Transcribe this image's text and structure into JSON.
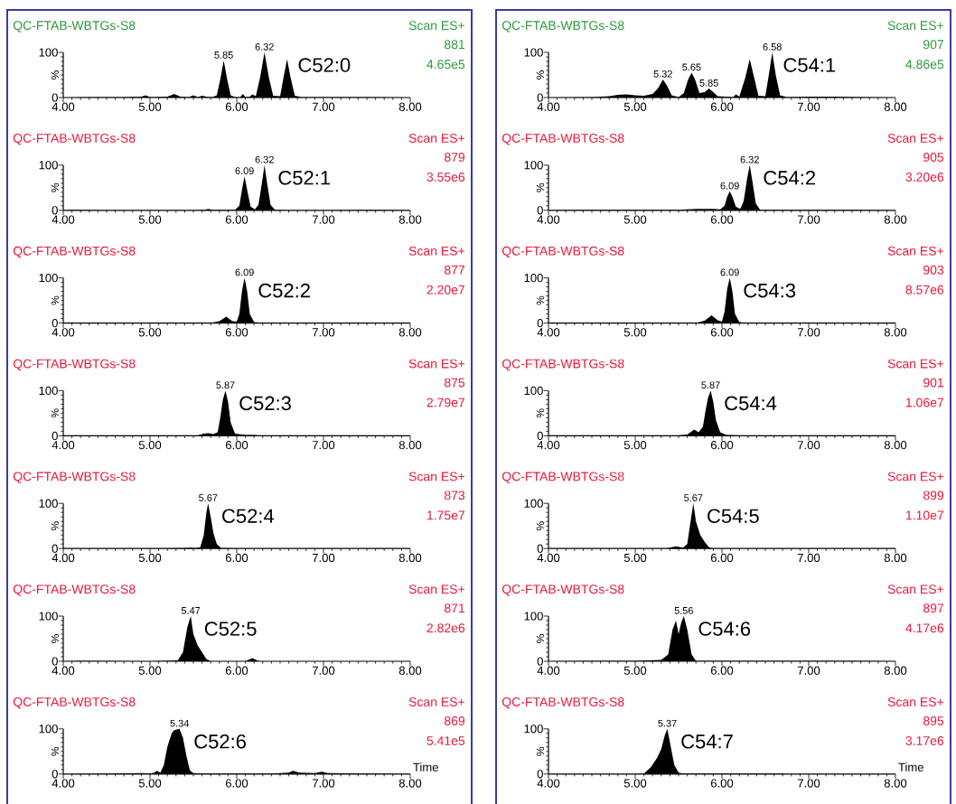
{
  "chart_data": [
    {
      "type": "area",
      "title": "QC-FTAB-WBTGs-S8",
      "subtitle": "Scan ES+",
      "ylabel": "%",
      "color": "#000000",
      "xlim": [
        4,
        8
      ],
      "ylim": [
        0,
        100
      ],
      "xticks": [
        {
          "value": 4,
          "label": "4.00"
        },
        {
          "value": 5,
          "label": "5.00"
        },
        {
          "value": 6,
          "label": "6.00"
        },
        {
          "value": 7,
          "label": "7.00"
        },
        {
          "value": 8,
          "label": "8.00"
        }
      ],
      "yticks": [
        0,
        100
      ],
      "x": [
        4.0,
        4.3,
        4.5,
        4.7,
        4.9,
        4.95,
        5.0,
        5.2,
        5.28,
        5.35,
        5.45,
        5.5,
        5.55,
        5.6,
        5.65,
        5.72,
        5.77,
        5.81,
        5.85,
        5.89,
        5.93,
        5.98,
        6.04,
        6.07,
        6.1,
        6.15,
        6.18,
        6.22,
        6.27,
        6.32,
        6.37,
        6.42,
        6.5,
        6.54,
        6.58,
        6.62,
        6.67,
        6.75,
        7.0,
        7.5,
        8.0
      ],
      "values": [
        0,
        1,
        1,
        1,
        2,
        5,
        1,
        2,
        8,
        2,
        1,
        5,
        1,
        4,
        2,
        1,
        5,
        40,
        82,
        40,
        5,
        1,
        1,
        8,
        1,
        2,
        7,
        3,
        45,
        100,
        45,
        4,
        3,
        45,
        85,
        45,
        4,
        1,
        1,
        1,
        0
      ],
      "annotations": [
        "881",
        "4.65e5",
        "C52:0",
        {
          "text": "5.85",
          "x": 5.85,
          "y": 82
        },
        {
          "text": "6.32",
          "x": 6.32,
          "y": 100
        }
      ]
    },
    {
      "type": "area",
      "title": "QC-FTAB-WBTGs-S8",
      "subtitle": "Scan ES+",
      "ylabel": "%",
      "color": "#000000",
      "xlim": [
        4,
        8
      ],
      "ylim": [
        0,
        100
      ],
      "xticks": [
        {
          "value": 4,
          "label": "4.00"
        },
        {
          "value": 5,
          "label": "5.00"
        },
        {
          "value": 6,
          "label": "6.00"
        },
        {
          "value": 7,
          "label": "7.00"
        },
        {
          "value": 8,
          "label": "8.00"
        }
      ],
      "yticks": [
        0,
        100
      ],
      "x": [
        4.0,
        4.5,
        4.7,
        4.8,
        4.9,
        5.0,
        5.1,
        5.2,
        5.26,
        5.32,
        5.37,
        5.42,
        5.5,
        5.56,
        5.61,
        5.65,
        5.69,
        5.74,
        5.8,
        5.85,
        5.9,
        5.95,
        6.05,
        6.13,
        6.16,
        6.2,
        6.27,
        6.32,
        6.37,
        6.42,
        6.5,
        6.54,
        6.58,
        6.62,
        6.67,
        6.75,
        7.0,
        7.3,
        7.6,
        8.0
      ],
      "values": [
        0,
        1,
        3,
        6,
        7,
        5,
        4,
        8,
        20,
        40,
        25,
        5,
        1,
        10,
        40,
        55,
        40,
        10,
        12,
        20,
        12,
        3,
        2,
        1,
        7,
        2,
        45,
        85,
        45,
        4,
        3,
        50,
        100,
        50,
        5,
        1,
        2,
        2,
        1,
        0
      ],
      "annotations": [
        "907",
        "4.86e5",
        "C54:1",
        {
          "text": "5.32",
          "x": 5.32,
          "y": 40
        },
        {
          "text": "5.65",
          "x": 5.65,
          "y": 55
        },
        {
          "text": "5.85",
          "x": 5.85,
          "y": 20
        },
        {
          "text": "6.58",
          "x": 6.58,
          "y": 100
        }
      ]
    },
    {
      "type": "area",
      "title": "QC-FTAB-WBTGs-S8",
      "subtitle": "Scan ES+",
      "ylabel": "%",
      "color": "#000000",
      "xlim": [
        4,
        8
      ],
      "ylim": [
        0,
        100
      ],
      "xticks": [
        {
          "value": 4,
          "label": "4.00"
        },
        {
          "value": 5,
          "label": "5.00"
        },
        {
          "value": 6,
          "label": "6.00"
        },
        {
          "value": 7,
          "label": "7.00"
        },
        {
          "value": 8,
          "label": "8.00"
        }
      ],
      "yticks": [
        0,
        100
      ],
      "x": [
        4.0,
        4.1,
        4.5,
        5.0,
        5.5,
        5.63,
        5.67,
        5.72,
        5.9,
        5.98,
        6.03,
        6.06,
        6.09,
        6.12,
        6.16,
        6.21,
        6.25,
        6.29,
        6.32,
        6.35,
        6.39,
        6.44,
        6.6,
        7.0,
        7.6,
        8.0
      ],
      "values": [
        0,
        1,
        0,
        0,
        0,
        1,
        3,
        1,
        1,
        1,
        10,
        45,
        75,
        45,
        8,
        2,
        12,
        60,
        100,
        60,
        12,
        1,
        0,
        0,
        1,
        0
      ],
      "annotations": [
        "879",
        "3.55e6",
        "C52:1",
        {
          "text": "6.09",
          "x": 6.09,
          "y": 75
        },
        {
          "text": "6.32",
          "x": 6.32,
          "y": 100
        }
      ]
    },
    {
      "type": "area",
      "title": "QC-FTAB-WBTGs-S8",
      "subtitle": "Scan ES+",
      "ylabel": "%",
      "color": "#000000",
      "xlim": [
        4,
        8
      ],
      "ylim": [
        0,
        100
      ],
      "xticks": [
        {
          "value": 4,
          "label": "4.00"
        },
        {
          "value": 5,
          "label": "5.00"
        },
        {
          "value": 6,
          "label": "6.00"
        },
        {
          "value": 7,
          "label": "7.00"
        },
        {
          "value": 8,
          "label": "8.00"
        }
      ],
      "yticks": [
        0,
        100
      ],
      "x": [
        4.0,
        4.5,
        5.0,
        5.5,
        5.6,
        5.7,
        5.9,
        5.98,
        6.03,
        6.06,
        6.09,
        6.12,
        6.16,
        6.21,
        6.25,
        6.29,
        6.32,
        6.35,
        6.39,
        6.44,
        6.6,
        7.0,
        7.5,
        8.0
      ],
      "values": [
        0,
        1,
        1,
        1,
        2,
        3,
        3,
        2,
        10,
        30,
        42,
        30,
        8,
        3,
        20,
        70,
        100,
        65,
        15,
        1,
        1,
        1,
        1,
        0
      ],
      "annotations": [
        "905",
        "3.20e6",
        "C54:2",
        {
          "text": "6.09",
          "x": 6.09,
          "y": 42
        },
        {
          "text": "6.32",
          "x": 6.32,
          "y": 100
        }
      ]
    },
    {
      "type": "area",
      "title": "QC-FTAB-WBTGs-S8",
      "subtitle": "Scan ES+",
      "ylabel": "%",
      "color": "#000000",
      "xlim": [
        4,
        8
      ],
      "ylim": [
        0,
        100
      ],
      "xticks": [
        {
          "value": 4,
          "label": "4.00"
        },
        {
          "value": 5,
          "label": "5.00"
        },
        {
          "value": 6,
          "label": "6.00"
        },
        {
          "value": 7,
          "label": "7.00"
        },
        {
          "value": 8,
          "label": "8.00"
        }
      ],
      "yticks": [
        0,
        100
      ],
      "x": [
        4.0,
        5.0,
        5.7,
        5.8,
        5.88,
        5.95,
        6.0,
        6.03,
        6.06,
        6.09,
        6.12,
        6.15,
        6.2,
        6.3,
        7.0,
        8.0
      ],
      "values": [
        0,
        0,
        0,
        4,
        14,
        4,
        3,
        20,
        70,
        100,
        70,
        20,
        2,
        0,
        0,
        0
      ],
      "annotations": [
        "877",
        "2.20e7",
        "C52:2",
        {
          "text": "6.09",
          "x": 6.09,
          "y": 100
        }
      ]
    },
    {
      "type": "area",
      "title": "QC-FTAB-WBTGs-S8",
      "subtitle": "Scan ES+",
      "ylabel": "%",
      "color": "#000000",
      "xlim": [
        4,
        8
      ],
      "ylim": [
        0,
        100
      ],
      "xticks": [
        {
          "value": 4,
          "label": "4.00"
        },
        {
          "value": 5,
          "label": "5.00"
        },
        {
          "value": 6,
          "label": "6.00"
        },
        {
          "value": 7,
          "label": "7.00"
        },
        {
          "value": 8,
          "label": "8.00"
        }
      ],
      "yticks": [
        0,
        100
      ],
      "x": [
        4.0,
        5.0,
        5.7,
        5.8,
        5.88,
        5.95,
        6.0,
        6.03,
        6.06,
        6.09,
        6.12,
        6.15,
        6.2,
        6.3,
        7.0,
        8.0
      ],
      "values": [
        0,
        0,
        0,
        5,
        17,
        6,
        3,
        25,
        75,
        100,
        70,
        20,
        2,
        0,
        0,
        0
      ],
      "annotations": [
        "903",
        "8.57e6",
        "C54:3",
        {
          "text": "6.09",
          "x": 6.09,
          "y": 100
        }
      ]
    },
    {
      "type": "area",
      "title": "QC-FTAB-WBTGs-S8",
      "subtitle": "Scan ES+",
      "ylabel": "%",
      "color": "#000000",
      "xlim": [
        4,
        8
      ],
      "ylim": [
        0,
        100
      ],
      "xticks": [
        {
          "value": 4,
          "label": "4.00"
        },
        {
          "value": 5,
          "label": "5.00"
        },
        {
          "value": 6,
          "label": "6.00"
        },
        {
          "value": 7,
          "label": "7.00"
        },
        {
          "value": 8,
          "label": "8.00"
        }
      ],
      "yticks": [
        0,
        100
      ],
      "x": [
        4.0,
        5.0,
        5.55,
        5.62,
        5.67,
        5.73,
        5.78,
        5.81,
        5.84,
        5.87,
        5.9,
        5.93,
        5.98,
        6.1,
        6.2,
        6.3,
        7.0,
        8.0
      ],
      "values": [
        0,
        0,
        1,
        5,
        6,
        4,
        8,
        40,
        80,
        100,
        75,
        30,
        5,
        2,
        2,
        0,
        0,
        0
      ],
      "annotations": [
        "875",
        "2.79e7",
        "C52:3",
        {
          "text": "5.87",
          "x": 5.87,
          "y": 100
        }
      ]
    },
    {
      "type": "area",
      "title": "QC-FTAB-WBTGs-S8",
      "subtitle": "Scan ES+",
      "ylabel": "%",
      "color": "#000000",
      "xlim": [
        4,
        8
      ],
      "ylim": [
        0,
        100
      ],
      "xticks": [
        {
          "value": 4,
          "label": "4.00"
        },
        {
          "value": 5,
          "label": "5.00"
        },
        {
          "value": 6,
          "label": "6.00"
        },
        {
          "value": 7,
          "label": "7.00"
        },
        {
          "value": 8,
          "label": "8.00"
        }
      ],
      "yticks": [
        0,
        100
      ],
      "x": [
        4.0,
        5.0,
        5.05,
        5.1,
        5.3,
        5.5,
        5.6,
        5.68,
        5.73,
        5.78,
        5.81,
        5.84,
        5.87,
        5.9,
        5.93,
        5.98,
        6.05,
        6.2,
        6.4,
        6.5,
        7.0,
        8.0
      ],
      "values": [
        0,
        0,
        1,
        0,
        1,
        1,
        3,
        14,
        8,
        20,
        55,
        85,
        100,
        75,
        35,
        8,
        2,
        1,
        1,
        0,
        0,
        0
      ],
      "annotations": [
        "901",
        "1.06e7",
        "C54:4",
        {
          "text": "5.87",
          "x": 5.87,
          "y": 100
        }
      ]
    },
    {
      "type": "area",
      "title": "QC-FTAB-WBTGs-S8",
      "subtitle": "Scan ES+",
      "ylabel": "%",
      "color": "#000000",
      "xlim": [
        4,
        8
      ],
      "ylim": [
        0,
        100
      ],
      "xticks": [
        {
          "value": 4,
          "label": "4.00"
        },
        {
          "value": 5,
          "label": "5.00"
        },
        {
          "value": 6,
          "label": "6.00"
        },
        {
          "value": 7,
          "label": "7.00"
        },
        {
          "value": 8,
          "label": "8.00"
        }
      ],
      "yticks": [
        0,
        100
      ],
      "x": [
        4.0,
        5.0,
        5.4,
        5.47,
        5.52,
        5.58,
        5.62,
        5.65,
        5.67,
        5.7,
        5.73,
        5.77,
        5.82,
        6.0,
        7.0,
        8.0
      ],
      "values": [
        0,
        0,
        1,
        2,
        1,
        3,
        30,
        80,
        100,
        70,
        35,
        10,
        1,
        0,
        0,
        0
      ],
      "annotations": [
        "873",
        "1.75e7",
        "C52:4",
        {
          "text": "5.67",
          "x": 5.67,
          "y": 100
        }
      ]
    },
    {
      "type": "area",
      "title": "QC-FTAB-WBTGs-S8",
      "subtitle": "Scan ES+",
      "ylabel": "%",
      "color": "#000000",
      "xlim": [
        4,
        8
      ],
      "ylim": [
        0,
        100
      ],
      "xticks": [
        {
          "value": 4,
          "label": "4.00"
        },
        {
          "value": 5,
          "label": "5.00"
        },
        {
          "value": 6,
          "label": "6.00"
        },
        {
          "value": 7,
          "label": "7.00"
        },
        {
          "value": 8,
          "label": "8.00"
        }
      ],
      "yticks": [
        0,
        100
      ],
      "x": [
        4.0,
        5.0,
        5.35,
        5.47,
        5.55,
        5.6,
        5.63,
        5.67,
        5.7,
        5.75,
        5.8,
        5.85,
        5.9,
        6.0,
        7.0,
        8.0
      ],
      "values": [
        0,
        0,
        0,
        5,
        2,
        10,
        50,
        100,
        60,
        30,
        15,
        3,
        0,
        0,
        0,
        0
      ],
      "annotations": [
        "899",
        "1.10e7",
        "C54:5",
        {
          "text": "5.67",
          "x": 5.67,
          "y": 100
        }
      ]
    },
    {
      "type": "area",
      "title": "QC-FTAB-WBTGs-S8",
      "subtitle": "Scan ES+",
      "ylabel": "%",
      "color": "#000000",
      "xlim": [
        4,
        8
      ],
      "ylim": [
        0,
        100
      ],
      "xticks": [
        {
          "value": 4,
          "label": "4.00"
        },
        {
          "value": 5,
          "label": "5.00"
        },
        {
          "value": 6,
          "label": "6.00"
        },
        {
          "value": 7,
          "label": "7.00"
        },
        {
          "value": 8,
          "label": "8.00"
        }
      ],
      "yticks": [
        0,
        100
      ],
      "x": [
        4.0,
        4.2,
        5.0,
        5.32,
        5.38,
        5.43,
        5.47,
        5.5,
        5.55,
        5.6,
        5.65,
        5.7,
        6.1,
        6.18,
        6.26,
        6.5,
        7.0,
        8.0
      ],
      "values": [
        0,
        1,
        0,
        2,
        20,
        75,
        100,
        60,
        35,
        20,
        5,
        0,
        0,
        7,
        0,
        0,
        0,
        0
      ],
      "annotations": [
        "871",
        "2.82e6",
        "C52:5",
        {
          "text": "5.47",
          "x": 5.47,
          "y": 100
        }
      ]
    },
    {
      "type": "area",
      "title": "QC-FTAB-WBTGs-S8",
      "subtitle": "Scan ES+",
      "ylabel": "%",
      "color": "#000000",
      "xlim": [
        4,
        8
      ],
      "ylim": [
        0,
        100
      ],
      "xticks": [
        {
          "value": 4,
          "label": "4.00"
        },
        {
          "value": 5,
          "label": "5.00"
        },
        {
          "value": 6,
          "label": "6.00"
        },
        {
          "value": 7,
          "label": "7.00"
        },
        {
          "value": 8,
          "label": "8.00"
        }
      ],
      "yticks": [
        0,
        100
      ],
      "x": [
        4.0,
        4.5,
        5.0,
        5.3,
        5.38,
        5.43,
        5.47,
        5.5,
        5.53,
        5.56,
        5.6,
        5.65,
        5.7,
        6.0,
        6.5,
        7.0,
        7.5,
        8.0
      ],
      "values": [
        0,
        1,
        1,
        3,
        15,
        70,
        90,
        60,
        85,
        100,
        70,
        15,
        1,
        1,
        1,
        1,
        1,
        0
      ],
      "annotations": [
        "897",
        "4.17e6",
        "C54:6",
        {
          "text": "5.56",
          "x": 5.56,
          "y": 100
        }
      ]
    },
    {
      "type": "area",
      "title": "QC-FTAB-WBTGs-S8",
      "subtitle": "Scan ES+",
      "ylabel": "%",
      "xlabel": "Time",
      "color": "#000000",
      "xlim": [
        4,
        8
      ],
      "ylim": [
        0,
        100
      ],
      "xticks": [
        {
          "value": 4,
          "label": "4.00"
        },
        {
          "value": 5,
          "label": "5.00"
        },
        {
          "value": 6,
          "label": "6.00"
        },
        {
          "value": 7,
          "label": "7.00"
        },
        {
          "value": 8,
          "label": "8.00"
        }
      ],
      "yticks": [
        0,
        100
      ],
      "x": [
        4.0,
        4.5,
        4.9,
        5.0,
        5.05,
        5.08,
        5.12,
        5.16,
        5.2,
        5.25,
        5.28,
        5.34,
        5.38,
        5.42,
        5.46,
        5.5,
        5.6,
        6.0,
        6.4,
        6.6,
        6.65,
        6.72,
        6.9,
        6.98,
        7.05,
        7.5,
        8.0
      ],
      "values": [
        0,
        1,
        2,
        1,
        3,
        7,
        3,
        20,
        60,
        90,
        97,
        100,
        80,
        40,
        8,
        2,
        1,
        1,
        1,
        3,
        7,
        3,
        2,
        5,
        2,
        1,
        0
      ],
      "annotations": [
        "869",
        "5.41e5",
        "C52:6",
        {
          "text": "5.34",
          "x": 5.34,
          "y": 100
        }
      ]
    },
    {
      "type": "area",
      "title": "QC-FTAB-WBTGs-S8",
      "subtitle": "Scan ES+",
      "ylabel": "%",
      "xlabel": "Time",
      "color": "#000000",
      "xlim": [
        4,
        8
      ],
      "ylim": [
        0,
        100
      ],
      "xticks": [
        {
          "value": 4,
          "label": "4.00"
        },
        {
          "value": 5,
          "label": "5.00"
        },
        {
          "value": 6,
          "label": "6.00"
        },
        {
          "value": 7,
          "label": "7.00"
        },
        {
          "value": 8,
          "label": "8.00"
        }
      ],
      "yticks": [
        0,
        100
      ],
      "x": [
        4.0,
        5.0,
        5.1,
        5.18,
        5.25,
        5.3,
        5.34,
        5.37,
        5.4,
        5.45,
        5.5,
        5.55,
        5.7,
        6.7,
        6.75,
        8.0
      ],
      "values": [
        0,
        0,
        1,
        15,
        35,
        55,
        85,
        100,
        70,
        20,
        3,
        1,
        1,
        1,
        0,
        0
      ],
      "annotations": [
        "895",
        "3.17e6",
        "C54:7",
        {
          "text": "5.37",
          "x": 5.37,
          "y": 100
        }
      ]
    }
  ]
}
